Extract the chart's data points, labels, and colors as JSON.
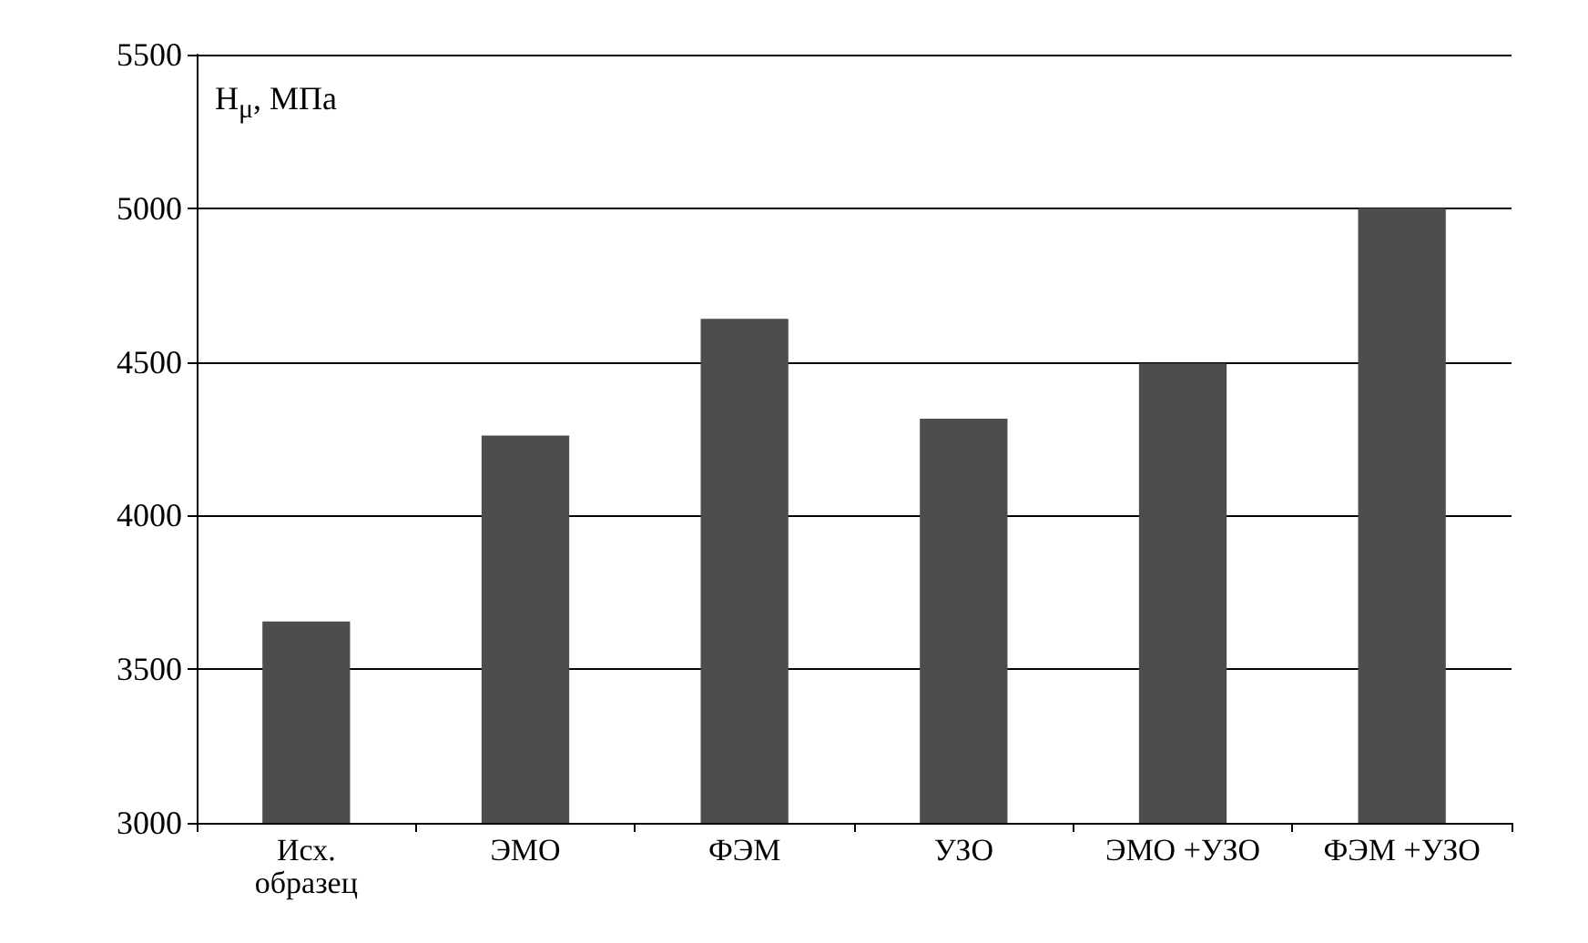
{
  "chart_data": {
    "type": "bar",
    "ylabel": "H$_{μ}$, МПа",
    "categories": [
      "Исх.\nобразец",
      "ЭМО",
      "ФЭМ",
      "УЗО",
      "ЭМО +УЗО",
      "ФЭМ +УЗО"
    ],
    "values": [
      3655,
      4260,
      4640,
      4315,
      4495,
      5000
    ],
    "color": "#4d4d4d",
    "ylim": [
      3000,
      5500
    ],
    "yticks": [
      3000,
      3500,
      4000,
      4500,
      5000,
      5500
    ],
    "grid": "y"
  }
}
